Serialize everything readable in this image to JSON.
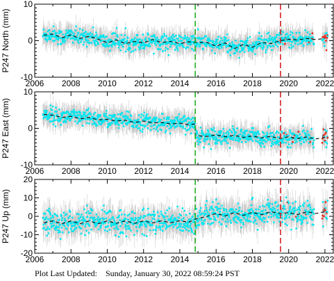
{
  "footer": {
    "label": "Plot Last Updated:",
    "timestamp": "Sunday, January 30, 2022 08:59:24 PST"
  },
  "colors": {
    "error_bars": "#b4b4b4",
    "points": "#00e6f0",
    "recent_points": "#e8281e",
    "trend": "#000000",
    "event_green": "#1fae1f",
    "event_red": "#d21e1e"
  },
  "chart_data": [
    {
      "type": "scatter",
      "ylabel": "P247 North (mm)",
      "xlim": [
        2006,
        2022.5
      ],
      "ylim": [
        -10,
        10
      ],
      "xticks": [
        2006,
        2008,
        2010,
        2012,
        2014,
        2016,
        2018,
        2020,
        2022
      ],
      "yticks": [
        -10,
        0,
        10
      ],
      "events": [
        {
          "x": 2014.85,
          "color": "green"
        },
        {
          "x": 2019.55,
          "color": "red"
        }
      ],
      "trend": {
        "x": [
          2006.5,
          2007.0,
          2007.5,
          2008.0,
          2008.5,
          2009.0,
          2009.5,
          2010.0,
          2010.5,
          2011.0,
          2011.5,
          2012.0,
          2012.5,
          2013.0,
          2013.5,
          2014.0,
          2014.5,
          2014.85,
          2015.5,
          2016.0,
          2016.5,
          2017.0,
          2017.5,
          2018.0,
          2018.5,
          2019.0,
          2019.55,
          2020.0,
          2020.5,
          2021.0,
          2021.5,
          2022.0
        ],
        "y": [
          1.5,
          1.8,
          0.8,
          1.6,
          0.6,
          1.2,
          0.4,
          -0.6,
          0.2,
          -0.8,
          -0.2,
          -0.6,
          0.3,
          -0.5,
          -0.2,
          -0.8,
          -0.3,
          -0.5,
          -0.5,
          -1.5,
          -0.6,
          -2.2,
          -1.0,
          -1.8,
          -0.5,
          -0.8,
          0.0,
          0.4,
          0.2,
          0.6,
          0.3,
          0.6
        ]
      },
      "scatter_sd": 1.1,
      "error_bar": 2.5,
      "recent_start": 2019.5
    },
    {
      "type": "scatter",
      "ylabel": "P247 East (mm)",
      "xlim": [
        2006,
        2022.5
      ],
      "ylim": [
        -10,
        10
      ],
      "xticks": [
        2006,
        2008,
        2010,
        2012,
        2014,
        2016,
        2018,
        2020,
        2022
      ],
      "yticks": [
        -10,
        0,
        10
      ],
      "events": [
        {
          "x": 2014.85,
          "color": "green"
        },
        {
          "x": 2019.55,
          "color": "red"
        }
      ],
      "trend": {
        "x": [
          2006.5,
          2007.0,
          2007.5,
          2008.0,
          2008.5,
          2009.0,
          2009.5,
          2010.0,
          2010.5,
          2011.0,
          2011.5,
          2012.0,
          2012.5,
          2013.0,
          2013.5,
          2014.0,
          2014.5,
          2014.84,
          2014.86,
          2015.5,
          2016.0,
          2016.5,
          2017.0,
          2017.5,
          2018.0,
          2018.5,
          2019.0,
          2019.55,
          2020.0,
          2020.5,
          2021.0,
          2021.5,
          2022.0
        ],
        "y": [
          3.8,
          3.6,
          3.0,
          3.3,
          2.6,
          3.0,
          2.3,
          2.5,
          2.0,
          2.2,
          1.6,
          2.0,
          1.5,
          1.6,
          1.2,
          1.4,
          1.0,
          1.2,
          -2.0,
          -2.2,
          -1.8,
          -2.3,
          -1.9,
          -2.5,
          -2.1,
          -2.6,
          -2.2,
          -2.8,
          -2.3,
          -2.8,
          -2.4,
          -2.9,
          -2.5
        ]
      },
      "scatter_sd": 1.1,
      "error_bar": 2.5,
      "recent_start": 2019.5
    },
    {
      "type": "scatter",
      "ylabel": "P247 Up (mm)",
      "xlim": [
        2006,
        2022.5
      ],
      "ylim": [
        -20,
        20
      ],
      "xticks": [
        2006,
        2008,
        2010,
        2012,
        2014,
        2016,
        2018,
        2020,
        2022
      ],
      "yticks": [
        -20,
        -10,
        0,
        10,
        20
      ],
      "events": [
        {
          "x": 2014.85,
          "color": "green"
        },
        {
          "x": 2019.55,
          "color": "red"
        }
      ],
      "trend": {
        "x": [
          2006.5,
          2007.0,
          2007.5,
          2008.0,
          2008.5,
          2009.0,
          2009.5,
          2010.0,
          2010.5,
          2011.0,
          2011.5,
          2012.0,
          2012.5,
          2013.0,
          2013.5,
          2014.0,
          2014.5,
          2014.85,
          2015.5,
          2016.0,
          2016.5,
          2017.0,
          2017.5,
          2018.0,
          2018.5,
          2019.0,
          2019.55,
          2020.0,
          2020.5,
          2021.0,
          2021.5,
          2022.0
        ],
        "y": [
          -3.5,
          -2.5,
          -4.0,
          -2.5,
          -4.0,
          -2.5,
          -4.0,
          -2.5,
          -3.8,
          -2.5,
          -3.8,
          -2.5,
          -3.6,
          -2.4,
          -3.5,
          -2.4,
          -3.2,
          -1.5,
          0.0,
          1.5,
          0.2,
          2.0,
          0.5,
          2.2,
          0.8,
          2.5,
          1.5,
          2.0,
          1.0,
          2.5,
          1.5,
          2.5
        ]
      },
      "scatter_sd": 3.2,
      "error_bar": 6.0,
      "recent_start": 2019.5
    }
  ]
}
